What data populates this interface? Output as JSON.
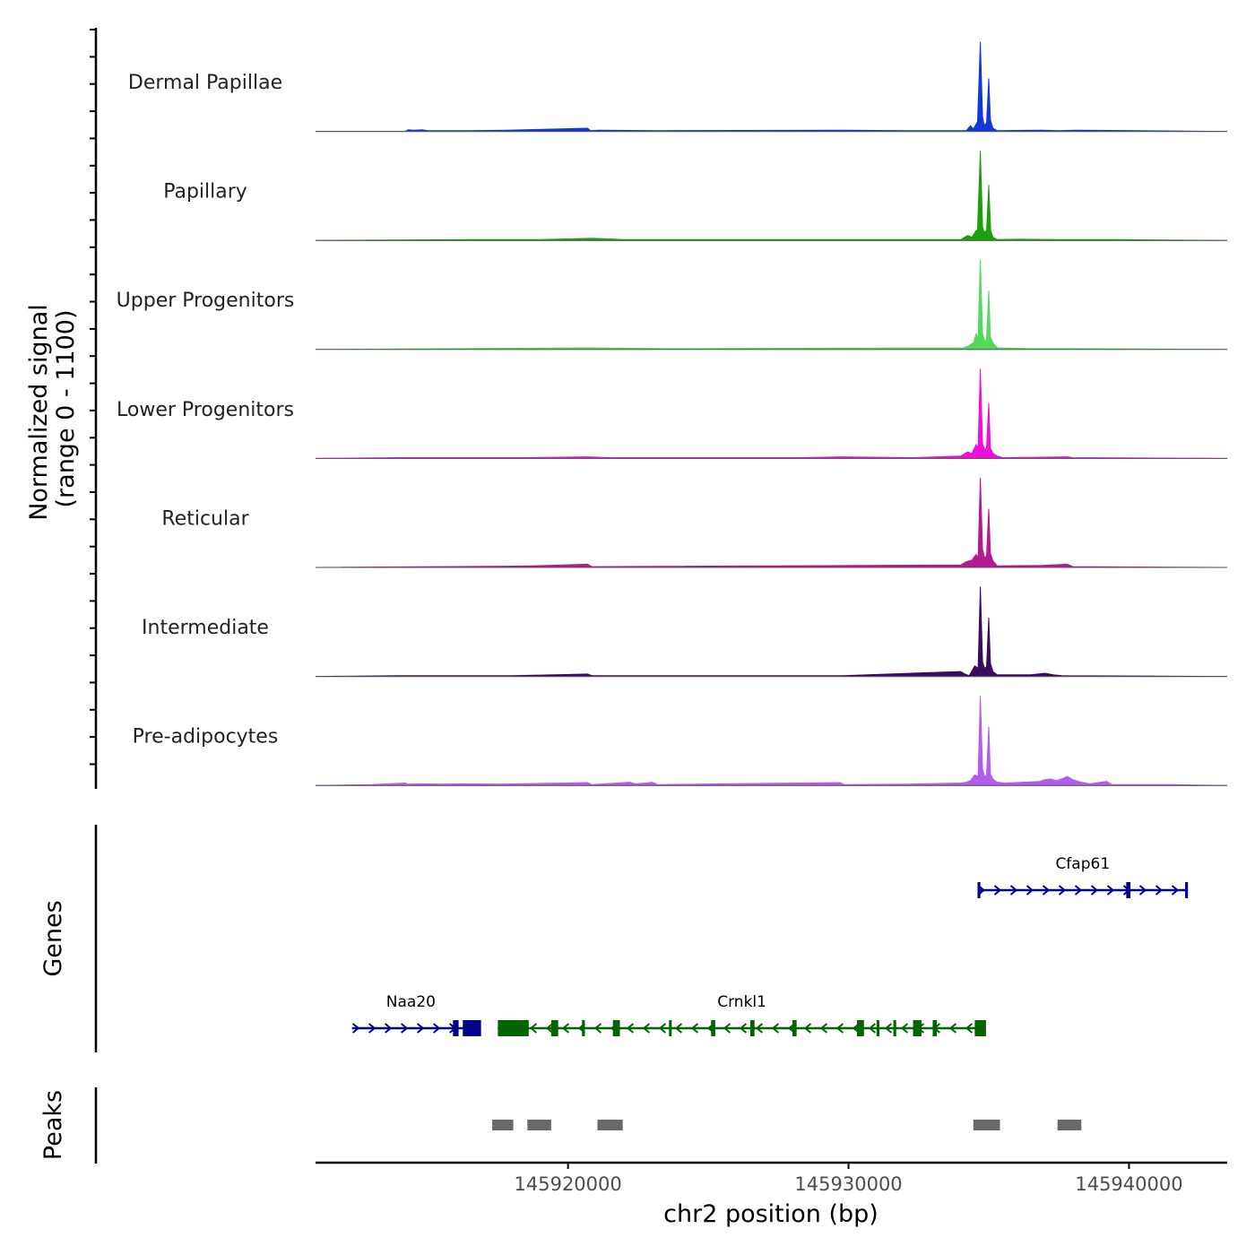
{
  "chart_data": {
    "type": "coverage",
    "title": "",
    "xlabel": "chr2 position (bp)",
    "xlim": [
      145911000,
      145943500
    ],
    "x_ticks": [
      145920000,
      145930000,
      145940000
    ],
    "x_tick_labels": [
      "145920000",
      "145930000",
      "145940000"
    ],
    "coverage": {
      "ylabel_line1": "Normalized signal",
      "ylabel_line2": "(range 0 - 1100)",
      "ylim": [
        0,
        1100
      ],
      "tracks": [
        {
          "name": "Dermal Papillae",
          "color": "#1338d8",
          "points": [
            [
              145914200,
              0
            ],
            [
              145914300,
              20
            ],
            [
              145914500,
              15
            ],
            [
              145914800,
              20
            ],
            [
              145915000,
              10
            ],
            [
              145916500,
              10
            ],
            [
              145917800,
              15
            ],
            [
              145920700,
              40
            ],
            [
              145920800,
              10
            ],
            [
              145921100,
              15
            ],
            [
              145923200,
              10
            ],
            [
              145929800,
              15
            ],
            [
              145932100,
              10
            ],
            [
              145934200,
              10
            ],
            [
              145934350,
              70
            ],
            [
              145934450,
              30
            ],
            [
              145934550,
              90
            ],
            [
              145934600,
              120
            ],
            [
              145934700,
              1100
            ],
            [
              145934780,
              180
            ],
            [
              145934830,
              80
            ],
            [
              145934920,
              100
            ],
            [
              145935000,
              650
            ],
            [
              145935060,
              140
            ],
            [
              145935150,
              40
            ],
            [
              145935300,
              10
            ],
            [
              145936900,
              15
            ],
            [
              145937500,
              10
            ],
            [
              145938100,
              15
            ]
          ]
        },
        {
          "name": "Papillary",
          "color": "#1aa00a",
          "points": [
            [
              145916500,
              10
            ],
            [
              145917800,
              10
            ],
            [
              145919000,
              10
            ],
            [
              145920700,
              25
            ],
            [
              145920900,
              25
            ],
            [
              145922000,
              10
            ],
            [
              145926000,
              10
            ],
            [
              145934000,
              10
            ],
            [
              145934250,
              60
            ],
            [
              145934400,
              40
            ],
            [
              145934550,
              120
            ],
            [
              145934600,
              130
            ],
            [
              145934700,
              1100
            ],
            [
              145934780,
              170
            ],
            [
              145934830,
              100
            ],
            [
              145934920,
              120
            ],
            [
              145935000,
              680
            ],
            [
              145935070,
              120
            ],
            [
              145935150,
              40
            ],
            [
              145935300,
              10
            ],
            [
              145936200,
              15
            ],
            [
              145937500,
              10
            ],
            [
              145939500,
              10
            ]
          ]
        },
        {
          "name": "Upper Progenitors",
          "color": "#54d85e",
          "points": [
            [
              145920700,
              20
            ],
            [
              145923500,
              10
            ],
            [
              145934100,
              20
            ],
            [
              145934250,
              40
            ],
            [
              145934450,
              80
            ],
            [
              145934550,
              190
            ],
            [
              145934620,
              140
            ],
            [
              145934700,
              1100
            ],
            [
              145934780,
              200
            ],
            [
              145934850,
              100
            ],
            [
              145934920,
              130
            ],
            [
              145935000,
              720
            ],
            [
              145935060,
              150
            ],
            [
              145935150,
              80
            ],
            [
              145935300,
              20
            ],
            [
              145936500,
              10
            ],
            [
              145938000,
              10
            ]
          ]
        },
        {
          "name": "Lower Progenitors",
          "color": "#f00edc",
          "points": [
            [
              145914000,
              10
            ],
            [
              145916500,
              10
            ],
            [
              145917800,
              10
            ],
            [
              145918500,
              10
            ],
            [
              145920700,
              20
            ],
            [
              145921500,
              10
            ],
            [
              145924800,
              10
            ],
            [
              145928300,
              10
            ],
            [
              145929800,
              20
            ],
            [
              145932300,
              10
            ],
            [
              145934000,
              30
            ],
            [
              145934250,
              80
            ],
            [
              145934400,
              60
            ],
            [
              145934550,
              170
            ],
            [
              145934620,
              130
            ],
            [
              145934700,
              1100
            ],
            [
              145934780,
              180
            ],
            [
              145934850,
              110
            ],
            [
              145934920,
              130
            ],
            [
              145935000,
              680
            ],
            [
              145935060,
              130
            ],
            [
              145935150,
              60
            ],
            [
              145935300,
              30
            ],
            [
              145935500,
              10
            ],
            [
              145937800,
              20
            ],
            [
              145938000,
              10
            ]
          ]
        },
        {
          "name": "Reticular",
          "color": "#b51890",
          "points": [
            [
              145917800,
              15
            ],
            [
              145918700,
              20
            ],
            [
              145920700,
              40
            ],
            [
              145920850,
              10
            ],
            [
              145934000,
              30
            ],
            [
              145934200,
              70
            ],
            [
              145934400,
              90
            ],
            [
              145934550,
              160
            ],
            [
              145934620,
              120
            ],
            [
              145934700,
              1100
            ],
            [
              145934780,
              220
            ],
            [
              145934850,
              120
            ],
            [
              145934920,
              140
            ],
            [
              145935000,
              720
            ],
            [
              145935060,
              170
            ],
            [
              145935150,
              80
            ],
            [
              145935300,
              20
            ],
            [
              145936900,
              25
            ],
            [
              145937800,
              40
            ],
            [
              145938000,
              10
            ]
          ]
        },
        {
          "name": "Intermediate",
          "color": "#3a0b5e",
          "points": [
            [
              145914000,
              10
            ],
            [
              145916500,
              10
            ],
            [
              145918000,
              10
            ],
            [
              145920700,
              30
            ],
            [
              145920850,
              10
            ],
            [
              145929800,
              10
            ],
            [
              145934000,
              60
            ],
            [
              145934150,
              30
            ],
            [
              145934300,
              10
            ],
            [
              145934500,
              130
            ],
            [
              145934620,
              100
            ],
            [
              145934700,
              1100
            ],
            [
              145934780,
              180
            ],
            [
              145934850,
              100
            ],
            [
              145934920,
              120
            ],
            [
              145935000,
              720
            ],
            [
              145935060,
              160
            ],
            [
              145935150,
              60
            ],
            [
              145935300,
              20
            ],
            [
              145936500,
              20
            ],
            [
              145937000,
              40
            ],
            [
              145937300,
              20
            ],
            [
              145937600,
              10
            ]
          ]
        },
        {
          "name": "Pre-adipocytes",
          "color": "#b25cf2",
          "points": [
            [
              145913000,
              10
            ],
            [
              145914200,
              30
            ],
            [
              145914300,
              15
            ],
            [
              145914800,
              20
            ],
            [
              145915500,
              15
            ],
            [
              145916200,
              20
            ],
            [
              145917500,
              15
            ],
            [
              145918200,
              20
            ],
            [
              145920700,
              35
            ],
            [
              145920850,
              10
            ],
            [
              145922200,
              40
            ],
            [
              145922400,
              20
            ],
            [
              145922800,
              30
            ],
            [
              145923000,
              40
            ],
            [
              145923200,
              10
            ],
            [
              145925500,
              20
            ],
            [
              145929700,
              35
            ],
            [
              145929850,
              10
            ],
            [
              145932000,
              15
            ],
            [
              145934000,
              30
            ],
            [
              145934200,
              40
            ],
            [
              145934350,
              60
            ],
            [
              145934500,
              130
            ],
            [
              145934620,
              110
            ],
            [
              145934700,
              1100
            ],
            [
              145934780,
              200
            ],
            [
              145934850,
              110
            ],
            [
              145934920,
              130
            ],
            [
              145935000,
              720
            ],
            [
              145935060,
              140
            ],
            [
              145935150,
              80
            ],
            [
              145935300,
              40
            ],
            [
              145935600,
              30
            ],
            [
              145936200,
              40
            ],
            [
              145936800,
              50
            ],
            [
              145937000,
              70
            ],
            [
              145937200,
              80
            ],
            [
              145937400,
              60
            ],
            [
              145937600,
              80
            ],
            [
              145937800,
              110
            ],
            [
              145938000,
              70
            ],
            [
              145938300,
              40
            ],
            [
              145938600,
              20
            ],
            [
              145939200,
              50
            ],
            [
              145939400,
              10
            ],
            [
              145941500,
              10
            ]
          ]
        }
      ]
    },
    "genes": {
      "ylabel": "Genes",
      "items": [
        {
          "name": "Naa20",
          "strand": "+",
          "color": "#00008b",
          "row": 2,
          "start": 145912300,
          "end": 145916500,
          "exons": [
            [
              145915900,
              145916100
            ],
            [
              145916250,
              145916900
            ]
          ]
        },
        {
          "name": "Crnkl1",
          "strand": "-",
          "color": "#006400",
          "row": 2,
          "start": 145917500,
          "end": 145934900,
          "exons": [
            [
              145917500,
              145918600
            ],
            [
              145919400,
              145919650
            ],
            [
              145920500,
              145920600
            ],
            [
              145921600,
              145921850
            ],
            [
              145923600,
              145923650
            ],
            [
              145925100,
              145925250
            ],
            [
              145926500,
              145926650
            ],
            [
              145928000,
              145928150
            ],
            [
              145930300,
              145930550
            ],
            [
              145931000,
              145931100
            ],
            [
              145931600,
              145931700
            ],
            [
              145932300,
              145932600
            ],
            [
              145933000,
              145933150
            ],
            [
              145934500,
              145934900
            ]
          ]
        },
        {
          "name": "Cfap61",
          "strand": "+",
          "color": "#00008b",
          "row": 1,
          "start": 145934600,
          "end": 145942100,
          "exons": [
            [
              145934600,
              145934700
            ],
            [
              145939900,
              145940050
            ],
            [
              145942000,
              145942100
            ]
          ]
        }
      ]
    },
    "peaks": {
      "ylabel": "Peaks",
      "color": "#696969",
      "items": [
        [
          145917300,
          145918050
        ],
        [
          145918550,
          145919400
        ],
        [
          145921050,
          145921950
        ],
        [
          145934450,
          145935400
        ],
        [
          145937450,
          145938300
        ]
      ]
    }
  }
}
